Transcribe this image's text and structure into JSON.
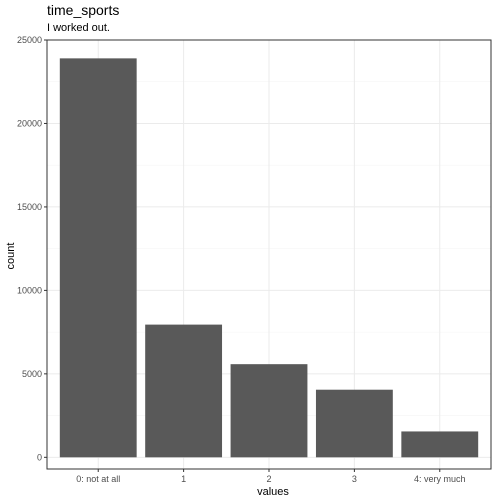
{
  "chart_data": {
    "type": "bar",
    "title": "time_sports",
    "subtitle": "I worked out.",
    "xlabel": "values",
    "ylabel": "count",
    "categories": [
      "0: not at all",
      "1",
      "2",
      "3",
      "4: very much"
    ],
    "values": [
      23900,
      7950,
      5580,
      4050,
      1550
    ],
    "ylim": [
      -700,
      25000
    ],
    "yticks": [
      0,
      5000,
      10000,
      15000,
      20000,
      25000
    ],
    "ytick_labels": [
      "0",
      "5000",
      "10000",
      "15000",
      "20000",
      "25000"
    ],
    "grid": true,
    "bar_color": "#595959",
    "grid_major_color": "#ebebeb",
    "grid_minor_color": "#f5f5f5",
    "panel_border_color": "#333333"
  }
}
